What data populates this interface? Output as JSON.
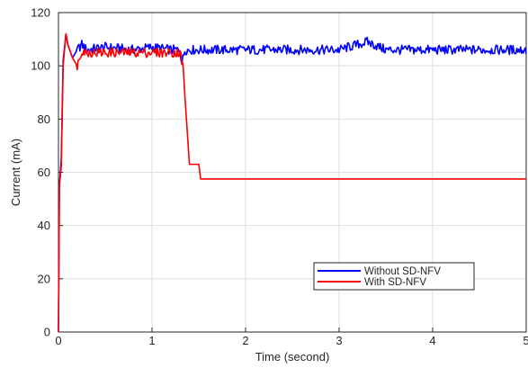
{
  "chart_data": {
    "type": "line",
    "title": "",
    "xlabel": "Time (second)",
    "ylabel": "Current (mA)",
    "xlim": [
      0,
      5
    ],
    "ylim": [
      0,
      120
    ],
    "xticks": [
      0,
      1,
      2,
      3,
      4,
      5
    ],
    "yticks": [
      0,
      20,
      40,
      60,
      80,
      100,
      120
    ],
    "grid": true,
    "legend": "bottom-right",
    "series": [
      {
        "name": "Without SD-NFV",
        "color": "#0000ff",
        "x": [
          0,
          0.01,
          0.03,
          0.05,
          0.08,
          0.1,
          0.15,
          0.2,
          0.25,
          0.3,
          0.5,
          0.8,
          1.0,
          1.2,
          1.3,
          1.32,
          1.35,
          1.5,
          2.0,
          2.5,
          3.0,
          3.3,
          3.5,
          4.0,
          4.5,
          5.0
        ],
        "y": [
          0,
          55,
          65,
          102,
          112,
          108,
          103,
          106,
          108,
          106,
          107,
          106,
          107,
          106,
          106,
          101,
          106,
          106,
          106,
          106,
          106,
          109,
          106,
          106,
          106,
          106
        ]
      },
      {
        "name": "With      SD-NFV",
        "color": "#ff0000",
        "x": [
          0,
          0.01,
          0.03,
          0.05,
          0.08,
          0.1,
          0.15,
          0.2,
          0.25,
          0.3,
          0.5,
          0.8,
          1.0,
          1.2,
          1.3,
          1.33,
          1.4,
          1.5,
          1.52,
          2.0,
          3.0,
          4.0,
          5.0
        ],
        "y": [
          0,
          55,
          62,
          100,
          112,
          108,
          103,
          100,
          106,
          105,
          105,
          105,
          105,
          105,
          105,
          100,
          63,
          63,
          57.5,
          57.5,
          57.5,
          57.5,
          57.5
        ]
      }
    ]
  }
}
